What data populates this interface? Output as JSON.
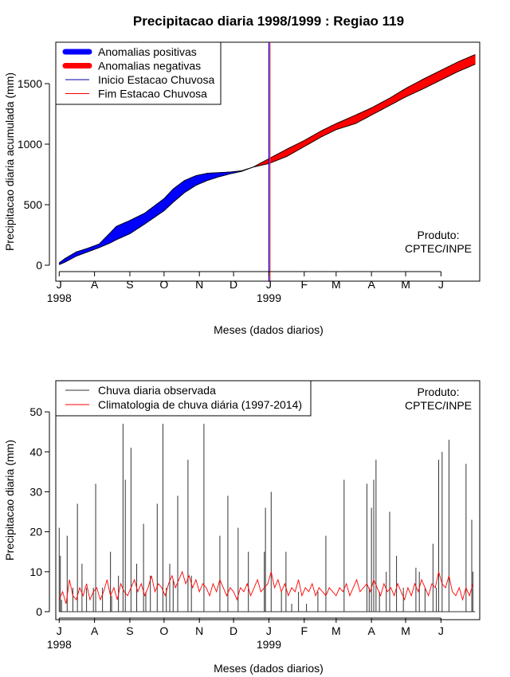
{
  "title": "Precipitacao diaria 1998/1999 : Regiao 119",
  "chart_data": [
    {
      "type": "area",
      "ylabel": "Precipitacao diaria acumulada (mm)",
      "xlabel": "Meses (dados diarios)",
      "ylim": [
        0,
        1750
      ],
      "yticks": [
        0,
        500,
        1000,
        1500
      ],
      "xlim_days": [
        -3,
        369
      ],
      "month_ticks": [
        {
          "day": 0,
          "label": "J"
        },
        {
          "day": 31,
          "label": "A"
        },
        {
          "day": 62,
          "label": "S"
        },
        {
          "day": 92,
          "label": "O"
        },
        {
          "day": 123,
          "label": "N"
        },
        {
          "day": 153,
          "label": "D"
        },
        {
          "day": 184,
          "label": "J"
        },
        {
          "day": 215,
          "label": "F"
        },
        {
          "day": 243,
          "label": "M"
        },
        {
          "day": 274,
          "label": "A"
        },
        {
          "day": 304,
          "label": "M"
        },
        {
          "day": 335,
          "label": "J"
        }
      ],
      "year_labels": [
        {
          "day": 0,
          "label": "1998"
        },
        {
          "day": 184,
          "label": "1999"
        }
      ],
      "legend": [
        {
          "label": "Anomalias positivas",
          "color": "#0000ff",
          "kind": "thick"
        },
        {
          "label": "Anomalias negativas",
          "color": "#ff0000",
          "kind": "thick"
        },
        {
          "label": "Inicio Estacao Chuvosa",
          "color": "#0000aa",
          "kind": "thin"
        },
        {
          "label": "Fim Estacao Chuvosa",
          "color": "#ff0000",
          "kind": "thin"
        }
      ],
      "vlines": [
        {
          "day": 184,
          "color": "#0000ff"
        },
        {
          "day": 185,
          "color": "#ff3333"
        }
      ],
      "annotation": "Produto:\nCPTEC/INPE",
      "series": [
        {
          "name": "observed_cumulative",
          "days": [
            0,
            5,
            15,
            25,
            35,
            45,
            50,
            62,
            75,
            92,
            100,
            110,
            120,
            130,
            140,
            150,
            160,
            170,
            184,
            200,
            215,
            230,
            243,
            260,
            274,
            290,
            304,
            320,
            335,
            350,
            365
          ],
          "values": [
            20,
            55,
            110,
            140,
            175,
            270,
            320,
            370,
            430,
            550,
            630,
            700,
            740,
            760,
            765,
            770,
            780,
            810,
            840,
            900,
            980,
            1060,
            1120,
            1170,
            1240,
            1320,
            1390,
            1460,
            1530,
            1600,
            1660
          ]
        },
        {
          "name": "climatology_cumulative",
          "days": [
            0,
            5,
            15,
            25,
            35,
            45,
            50,
            62,
            75,
            92,
            100,
            110,
            120,
            130,
            140,
            150,
            160,
            170,
            184,
            200,
            215,
            230,
            243,
            260,
            274,
            290,
            304,
            320,
            335,
            350,
            365
          ],
          "values": [
            5,
            25,
            75,
            110,
            145,
            185,
            210,
            260,
            340,
            450,
            520,
            600,
            660,
            700,
            730,
            755,
            775,
            810,
            880,
            960,
            1030,
            1110,
            1170,
            1240,
            1300,
            1380,
            1460,
            1540,
            1610,
            1680,
            1740
          ]
        }
      ]
    },
    {
      "type": "line",
      "ylabel": "Precipitacao diaria (mm)",
      "xlabel": "Meses (dados diarios)",
      "ylim": [
        0,
        55
      ],
      "yticks": [
        0,
        10,
        20,
        30,
        40,
        50
      ],
      "xlim_days": [
        -3,
        369
      ],
      "month_ticks": [
        {
          "day": 0,
          "label": "J"
        },
        {
          "day": 31,
          "label": "A"
        },
        {
          "day": 62,
          "label": "S"
        },
        {
          "day": 92,
          "label": "O"
        },
        {
          "day": 123,
          "label": "N"
        },
        {
          "day": 153,
          "label": "D"
        },
        {
          "day": 184,
          "label": "J"
        },
        {
          "day": 215,
          "label": "F"
        },
        {
          "day": 243,
          "label": "M"
        },
        {
          "day": 274,
          "label": "A"
        },
        {
          "day": 304,
          "label": "M"
        },
        {
          "day": 335,
          "label": "J"
        }
      ],
      "year_labels": [
        {
          "day": 0,
          "label": "1998"
        },
        {
          "day": 184,
          "label": "1999"
        }
      ],
      "legend": [
        {
          "label": "Chuva diaria observada",
          "color": "#333333"
        },
        {
          "label": "Climatologia de chuva diária (1997-2014)",
          "color": "#ff0000"
        }
      ],
      "annotation": "Produto:\nCPTEC/INPE",
      "series": [
        {
          "name": "Chuva diaria observada",
          "kind": "spikes",
          "color": "#333333",
          "days": [
            0,
            1,
            2,
            7,
            12,
            16,
            20,
            24,
            30,
            32,
            38,
            45,
            46,
            52,
            56,
            58,
            63,
            68,
            74,
            76,
            80,
            86,
            91,
            94,
            97,
            100,
            104,
            113,
            116,
            127,
            141,
            148,
            157,
            166,
            180,
            181,
            186,
            195,
            199,
            204,
            210,
            217,
            227,
            234,
            250,
            270,
            272,
            274,
            276,
            278,
            281,
            287,
            290,
            296,
            302,
            313,
            316,
            321,
            328,
            331,
            333,
            336,
            342,
            357,
            362,
            363
          ],
          "values": [
            21,
            14,
            3,
            19,
            6,
            27,
            12,
            6,
            6,
            32,
            6,
            15,
            4,
            9,
            47,
            33,
            41,
            12,
            22,
            5,
            9,
            27,
            47,
            6,
            12,
            8,
            29,
            38,
            9,
            47,
            19,
            29,
            21,
            15,
            15,
            26,
            30,
            5,
            15,
            2,
            5,
            2,
            5,
            19,
            33,
            32,
            6,
            26,
            33,
            38,
            5,
            10,
            25,
            14,
            6,
            11,
            10,
            6,
            17,
            6,
            38,
            40,
            43,
            37,
            23,
            10
          ]
        },
        {
          "name": "Climatologia de chuva diária (1997-2014)",
          "kind": "line",
          "color": "#ff0000",
          "days": [
            0,
            3,
            6,
            9,
            12,
            15,
            18,
            21,
            24,
            27,
            30,
            33,
            36,
            39,
            42,
            45,
            48,
            51,
            54,
            57,
            60,
            63,
            66,
            69,
            72,
            75,
            78,
            81,
            84,
            87,
            90,
            93,
            96,
            99,
            102,
            105,
            108,
            111,
            114,
            117,
            120,
            123,
            126,
            129,
            132,
            135,
            138,
            141,
            144,
            147,
            150,
            153,
            156,
            159,
            162,
            165,
            168,
            171,
            174,
            177,
            180,
            183,
            186,
            189,
            192,
            195,
            198,
            201,
            204,
            207,
            210,
            213,
            216,
            219,
            222,
            225,
            228,
            231,
            234,
            237,
            240,
            243,
            246,
            249,
            252,
            255,
            258,
            261,
            264,
            267,
            270,
            273,
            276,
            279,
            282,
            285,
            288,
            291,
            294,
            297,
            300,
            303,
            306,
            309,
            312,
            315,
            318,
            321,
            324,
            327,
            330,
            333,
            336,
            339,
            342,
            345,
            348,
            351,
            354,
            357,
            360,
            363
          ],
          "values": [
            3,
            5,
            2,
            8,
            4,
            3,
            6,
            4,
            7,
            3,
            5,
            6,
            3,
            5,
            8,
            4,
            6,
            3,
            7,
            5,
            4,
            6,
            8,
            5,
            7,
            4,
            6,
            9,
            5,
            7,
            6,
            4,
            7,
            9,
            6,
            8,
            10,
            7,
            9,
            6,
            8,
            5,
            7,
            6,
            4,
            7,
            5,
            8,
            6,
            4,
            6,
            5,
            3,
            6,
            5,
            7,
            4,
            6,
            8,
            5,
            6,
            7,
            10,
            6,
            8,
            5,
            7,
            4,
            6,
            5,
            8,
            4,
            6,
            5,
            7,
            4,
            6,
            5,
            4,
            6,
            5,
            4,
            6,
            5,
            7,
            4,
            6,
            8,
            5,
            6,
            7,
            5,
            8,
            6,
            4,
            7,
            5,
            6,
            4,
            7,
            5,
            3,
            6,
            4,
            7,
            5,
            8,
            6,
            4,
            7,
            6,
            10,
            7,
            6,
            9,
            5,
            4,
            6,
            3,
            6,
            4,
            7
          ]
        }
      ]
    }
  ]
}
